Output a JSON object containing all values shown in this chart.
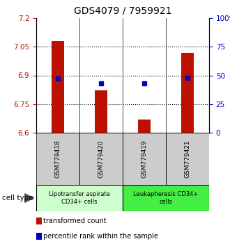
{
  "title": "GDS4079 / 7959921",
  "samples": [
    "GSM779418",
    "GSM779420",
    "GSM779419",
    "GSM779421"
  ],
  "bar_values": [
    7.08,
    6.82,
    6.67,
    7.02
  ],
  "percentile_values": [
    47,
    43,
    43,
    48
  ],
  "ylim_left": [
    6.6,
    7.2
  ],
  "ylim_right": [
    0,
    100
  ],
  "yticks_left": [
    6.6,
    6.75,
    6.9,
    7.05,
    7.2
  ],
  "yticks_right": [
    0,
    25,
    50,
    75,
    100
  ],
  "bar_color": "#bb1100",
  "dot_color": "#0000bb",
  "title_fontsize": 10,
  "label_fontsize": 6.5,
  "groups": [
    {
      "label": "Lipotransfer aspirate\nCD34+ cells",
      "color": "#ccffcc",
      "start": 0,
      "end": 1
    },
    {
      "label": "Leukapheresis CD34+\ncells",
      "color": "#44ee44",
      "start": 2,
      "end": 3
    }
  ],
  "cell_type_label": "cell type",
  "legend_red_label": "transformed count",
  "legend_blue_label": "percentile rank within the sample",
  "grid_yticks": [
    7.05,
    6.9,
    6.75
  ]
}
